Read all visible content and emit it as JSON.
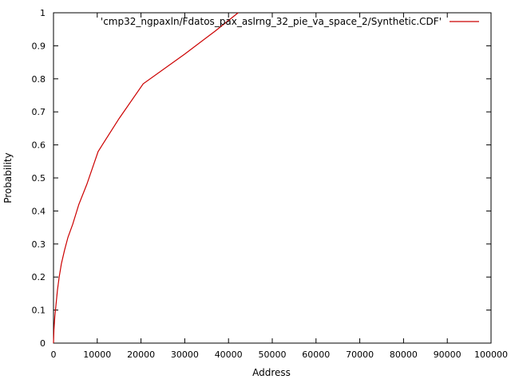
{
  "chart_data": {
    "type": "line",
    "xlabel": "Address",
    "ylabel": "Probability",
    "xlim": [
      0,
      100000
    ],
    "ylim": [
      0,
      1
    ],
    "x_ticks": [
      0,
      10000,
      20000,
      30000,
      40000,
      50000,
      60000,
      70000,
      80000,
      90000,
      100000
    ],
    "x_tick_labels": [
      "0",
      "10000",
      "20000",
      "30000",
      "40000",
      "50000",
      "60000",
      "70000",
      "80000",
      "90000",
      "100000"
    ],
    "y_ticks": [
      0,
      0.1,
      0.2,
      0.3,
      0.4,
      0.5,
      0.6,
      0.7,
      0.8,
      0.9,
      1
    ],
    "y_tick_labels": [
      "0",
      "0.1",
      "0.2",
      "0.3",
      "0.4",
      "0.5",
      "0.6",
      "0.7",
      "0.8",
      "0.9",
      "1"
    ],
    "grid": false,
    "legend_position": "top-right",
    "series": [
      {
        "name": "'cmp32_ngpaxln/Fdatos_pax_aslrng_32_pie_va_space_2/Synthetic.CDF'",
        "color": "#cc0000",
        "x": [
          0,
          100,
          300,
          600,
          900,
          1300,
          1800,
          2500,
          3300,
          4400,
          5800,
          7600,
          10200,
          15000,
          20500,
          30000,
          37000,
          42200
        ],
        "y": [
          0.0,
          0.04,
          0.08,
          0.12,
          0.16,
          0.2,
          0.24,
          0.28,
          0.32,
          0.36,
          0.42,
          0.48,
          0.58,
          0.68,
          0.785,
          0.875,
          0.945,
          1.0
        ]
      }
    ]
  }
}
